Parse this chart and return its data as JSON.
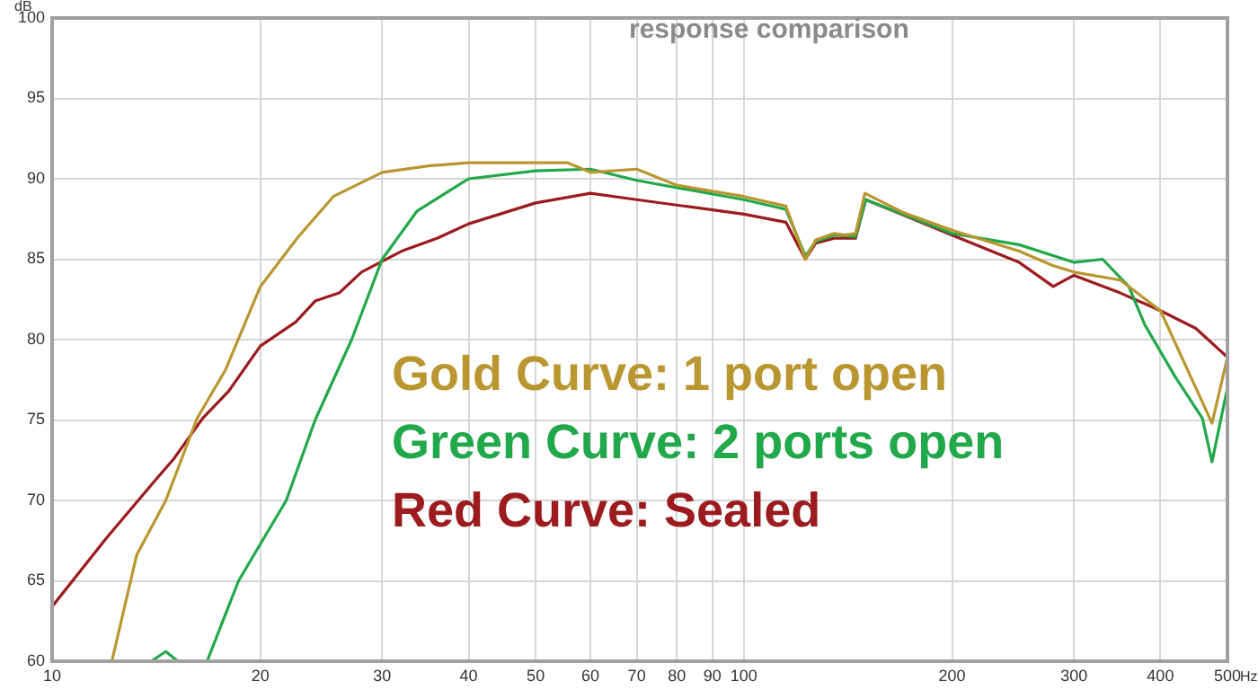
{
  "chart_data": {
    "type": "line",
    "title": "response comparison",
    "xlabel": "Hz",
    "ylabel": "dB",
    "log": "x",
    "grid": true,
    "marker": "none",
    "line_style": "solid",
    "xlim": [
      10,
      500
    ],
    "xticks": [
      10,
      20,
      30,
      40,
      50,
      60,
      70,
      80,
      90,
      100,
      200,
      300,
      400,
      500
    ],
    "ylim": [
      60,
      100
    ],
    "yticks": [
      60,
      65,
      70,
      75,
      80,
      85,
      90,
      95,
      100
    ],
    "series": [
      {
        "name": "Gold Curve: 1 port open",
        "color": "#b9962f",
        "x": [
          12.2,
          13.25,
          14.6,
          16.2,
          17.8,
          20,
          22.6,
          25.5,
          30,
          35,
          40,
          50,
          55.5,
          60,
          70,
          80,
          100,
          115,
          122.7,
          127,
          135,
          140,
          145,
          149.6,
          170,
          200,
          250,
          280,
          300,
          350,
          400,
          450,
          475,
          500
        ],
        "values": [
          60,
          66.6,
          70,
          75.1,
          78.1,
          83.3,
          86.3,
          88.9,
          90.4,
          90.8,
          91.0,
          91.0,
          91.0,
          90.4,
          90.6,
          89.6,
          88.9,
          88.3,
          85.0,
          86.2,
          86.6,
          86.5,
          86.6,
          89.1,
          87.9,
          86.8,
          85.5,
          84.6,
          84.2,
          83.7,
          81.8,
          77,
          74.8,
          78.9
        ]
      },
      {
        "name": "Green Curve: 2 ports open",
        "color": "#21a84a",
        "x": [
          13.9,
          14.6,
          15.2,
          16.75,
          18.6,
          21.8,
          24,
          27.1,
          30,
          33.7,
          40,
          50,
          60,
          70,
          100,
          115,
          122.7,
          127,
          135,
          145,
          150,
          200,
          250,
          300,
          330,
          360,
          380,
          420,
          460,
          475,
          500
        ],
        "values": [
          60,
          60.6,
          60,
          60,
          65,
          70,
          75,
          80,
          85,
          88,
          90,
          90.5,
          90.6,
          89.9,
          88.7,
          88.1,
          85.2,
          86.1,
          86.5,
          86.4,
          88.7,
          86.6,
          85.9,
          84.8,
          85,
          83.3,
          80.9,
          77.7,
          75.1,
          72.4,
          77
        ]
      },
      {
        "name": "Red Curve: Sealed",
        "color": "#9b1b1e",
        "x": [
          10,
          12,
          14,
          15,
          16.5,
          18,
          20,
          22.5,
          24,
          26,
          28,
          32,
          36,
          40,
          50,
          60,
          70,
          100,
          115,
          122.7,
          127,
          135,
          145,
          150,
          200,
          250,
          280,
          300,
          350,
          400,
          450,
          500
        ],
        "values": [
          63.4,
          67.7,
          71.1,
          72.6,
          75.1,
          76.8,
          79.6,
          81.1,
          82.4,
          82.9,
          84.2,
          85.5,
          86.3,
          87.2,
          88.5,
          89.1,
          88.7,
          87.8,
          87.3,
          85,
          86,
          86.3,
          86.3,
          88.7,
          86.5,
          84.8,
          83.3,
          84,
          82.9,
          81.8,
          80.7,
          78.9
        ]
      }
    ]
  }
}
